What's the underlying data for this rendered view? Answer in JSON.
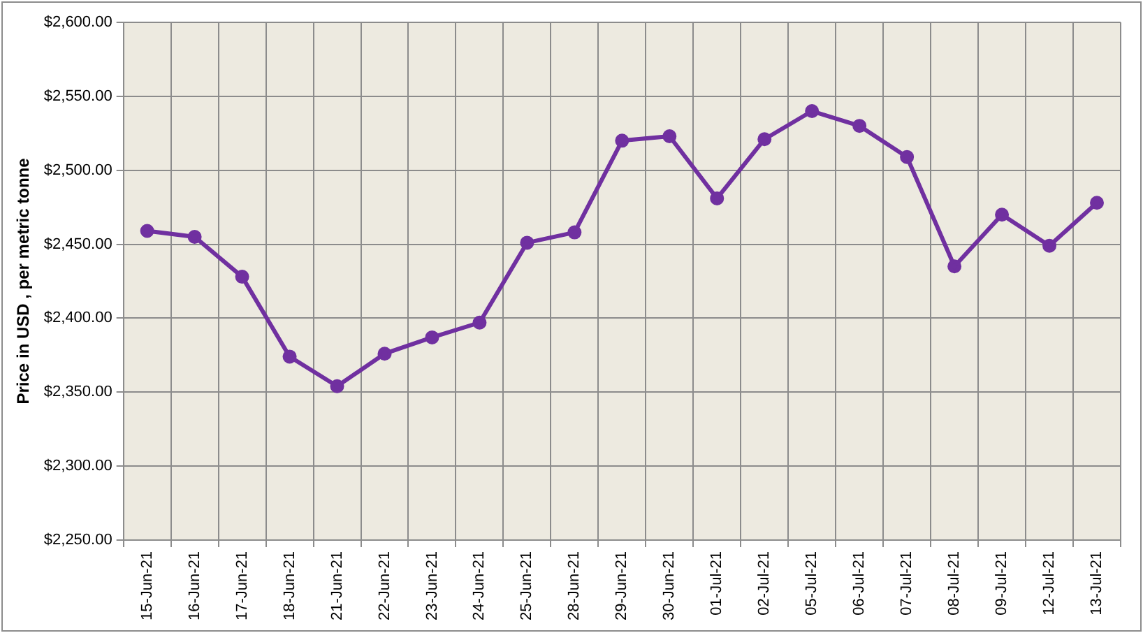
{
  "chart_data": {
    "type": "line",
    "ylabel": "Price in USD , per metric tonne",
    "categories": [
      "15-Jun-21",
      "16-Jun-21",
      "17-Jun-21",
      "18-Jun-21",
      "21-Jun-21",
      "22-Jun-21",
      "23-Jun-21",
      "24-Jun-21",
      "25-Jun-21",
      "28-Jun-21",
      "29-Jun-21",
      "30-Jun-21",
      "01-Jul-21",
      "02-Jul-21",
      "05-Jul-21",
      "06-Jul-21",
      "07-Jul-21",
      "08-Jul-21",
      "09-Jul-21",
      "12-Jul-21",
      "13-Jul-21"
    ],
    "series": [
      {
        "color": "#7030a0",
        "values": [
          2459,
          2455,
          2428,
          2374,
          2354,
          2376,
          2387,
          2397,
          2451,
          2458,
          2520,
          2523,
          2481,
          2521,
          2540,
          2530,
          2509,
          2435,
          2470,
          2449,
          2478
        ]
      }
    ],
    "ylim": [
      2250,
      2600
    ],
    "yticks": [
      {
        "value": 2250,
        "label": "$2,250.00"
      },
      {
        "value": 2300,
        "label": "$2,300.00"
      },
      {
        "value": 2350,
        "label": "$2,350.00"
      },
      {
        "value": 2400,
        "label": "$2,400.00"
      },
      {
        "value": 2450,
        "label": "$2,450.00"
      },
      {
        "value": 2500,
        "label": "$2,500.00"
      },
      {
        "value": 2550,
        "label": "$2,550.00"
      },
      {
        "value": 2600,
        "label": "$2,600.00"
      }
    ],
    "grid": true,
    "legend": false,
    "marker": "circle",
    "line_style": "solid"
  }
}
